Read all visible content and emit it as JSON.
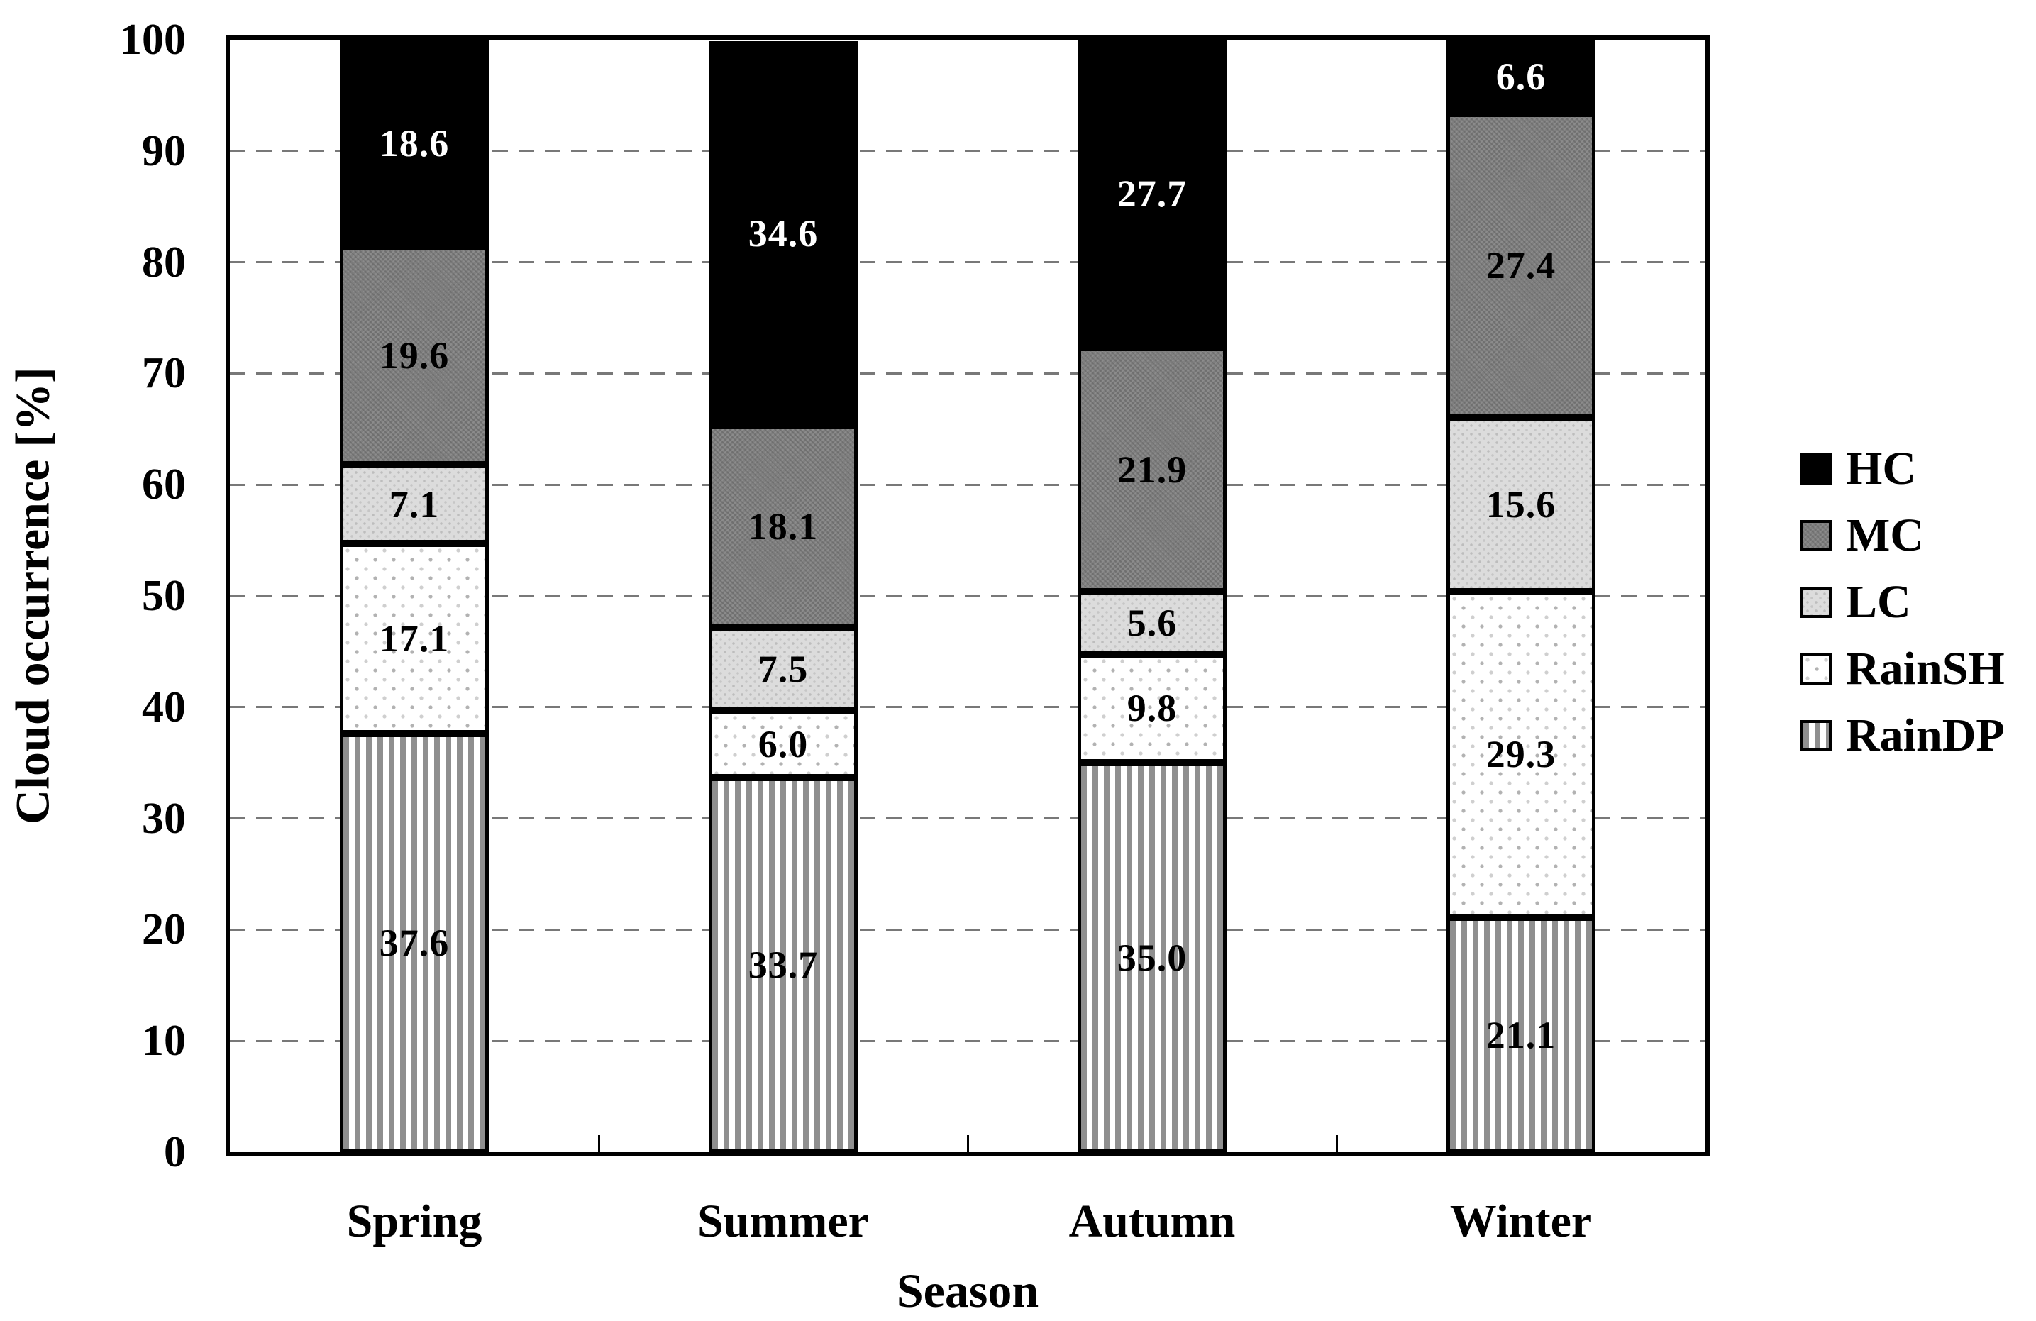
{
  "figure": {
    "background": "#ffffff",
    "text_color": "#000000",
    "ylabel": "Cloud occurrence [%]",
    "xlabel": "Season"
  },
  "chart_data": {
    "type": "bar",
    "stacked": true,
    "title": "",
    "ylabel": "Cloud occurrence [%]",
    "xlabel": "Season",
    "ylim": [
      0,
      100
    ],
    "yticks": [
      0,
      10,
      20,
      30,
      40,
      50,
      60,
      70,
      80,
      90,
      100
    ],
    "grid": "horizontal-dashed",
    "gridline_color": "#787878",
    "categories": [
      "Spring",
      "Summer",
      "Autumn",
      "Winter"
    ],
    "series": [
      {
        "name": "RainDP",
        "pattern": "vertical-stripes",
        "color": "#8f8f8f",
        "values": [
          37.6,
          33.7,
          35.0,
          21.1
        ],
        "labels": [
          "37.6",
          "33.7",
          "35.0",
          "21.1"
        ],
        "label_color": "#000000"
      },
      {
        "name": "RainSH",
        "pattern": "sparse-dots",
        "color": "#ffffff",
        "values": [
          17.1,
          6.0,
          9.8,
          29.3
        ],
        "labels": [
          "17.1",
          "6.0",
          "9.8",
          "29.3"
        ],
        "label_color": "#000000"
      },
      {
        "name": "LC",
        "pattern": "fine-dots",
        "color": "#dcdcdc",
        "values": [
          7.1,
          7.5,
          5.6,
          15.6
        ],
        "labels": [
          "7.1",
          "7.5",
          "5.6",
          "15.6"
        ],
        "label_color": "#000000"
      },
      {
        "name": "MC",
        "pattern": "dark-gray",
        "color": "#7f7f7f",
        "values": [
          19.6,
          18.1,
          21.9,
          27.4
        ],
        "labels": [
          "19.6",
          "18.1",
          "21.9",
          "27.4"
        ],
        "label_color": "#000000"
      },
      {
        "name": "HC",
        "pattern": "solid-black",
        "color": "#000000",
        "values": [
          18.6,
          34.6,
          27.7,
          6.6
        ],
        "labels": [
          "18.6",
          "34.6",
          "27.7",
          "6.6"
        ],
        "label_color": "#ffffff"
      }
    ],
    "legend": {
      "position": "right",
      "items": [
        "HC",
        "MC",
        "LC",
        "RainSH",
        "RainDP"
      ]
    }
  }
}
